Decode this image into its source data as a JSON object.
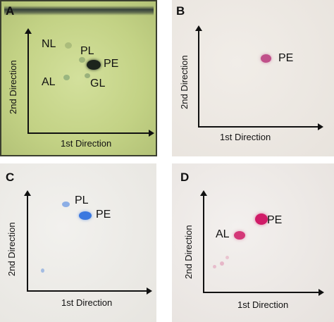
{
  "panels": {
    "A": {
      "label": "A",
      "x_axis_label": "1st Direction",
      "y_axis_label": "2nd Direction",
      "spots": {
        "NL": "NL",
        "PL": "PL",
        "PE": "PE",
        "AL": "AL",
        "GL": "GL"
      }
    },
    "B": {
      "label": "B",
      "x_axis_label": "1st Direction",
      "y_axis_label": "2nd Direction",
      "spots": {
        "PE": "PE"
      }
    },
    "C": {
      "label": "C",
      "x_axis_label": "1st Direction",
      "y_axis_label": "2nd Direction",
      "spots": {
        "PL": "PL",
        "PE": "PE"
      }
    },
    "D": {
      "label": "D",
      "x_axis_label": "1st Direction",
      "y_axis_label": "2nd Direction",
      "spots": {
        "AL": "AL",
        "PE": "PE"
      }
    }
  },
  "colors": {
    "panel_a_background": "#c4d48a",
    "panel_b_background": "#ece8e3",
    "panel_c_background": "#ecebe7",
    "panel_d_background": "#ece8e5",
    "pe_spot_panel_a": "#1c241c",
    "pe_spot_panel_b": "#c0508a",
    "spots_panel_c": "#3a78e0",
    "spots_panel_d": "#d01c68"
  }
}
